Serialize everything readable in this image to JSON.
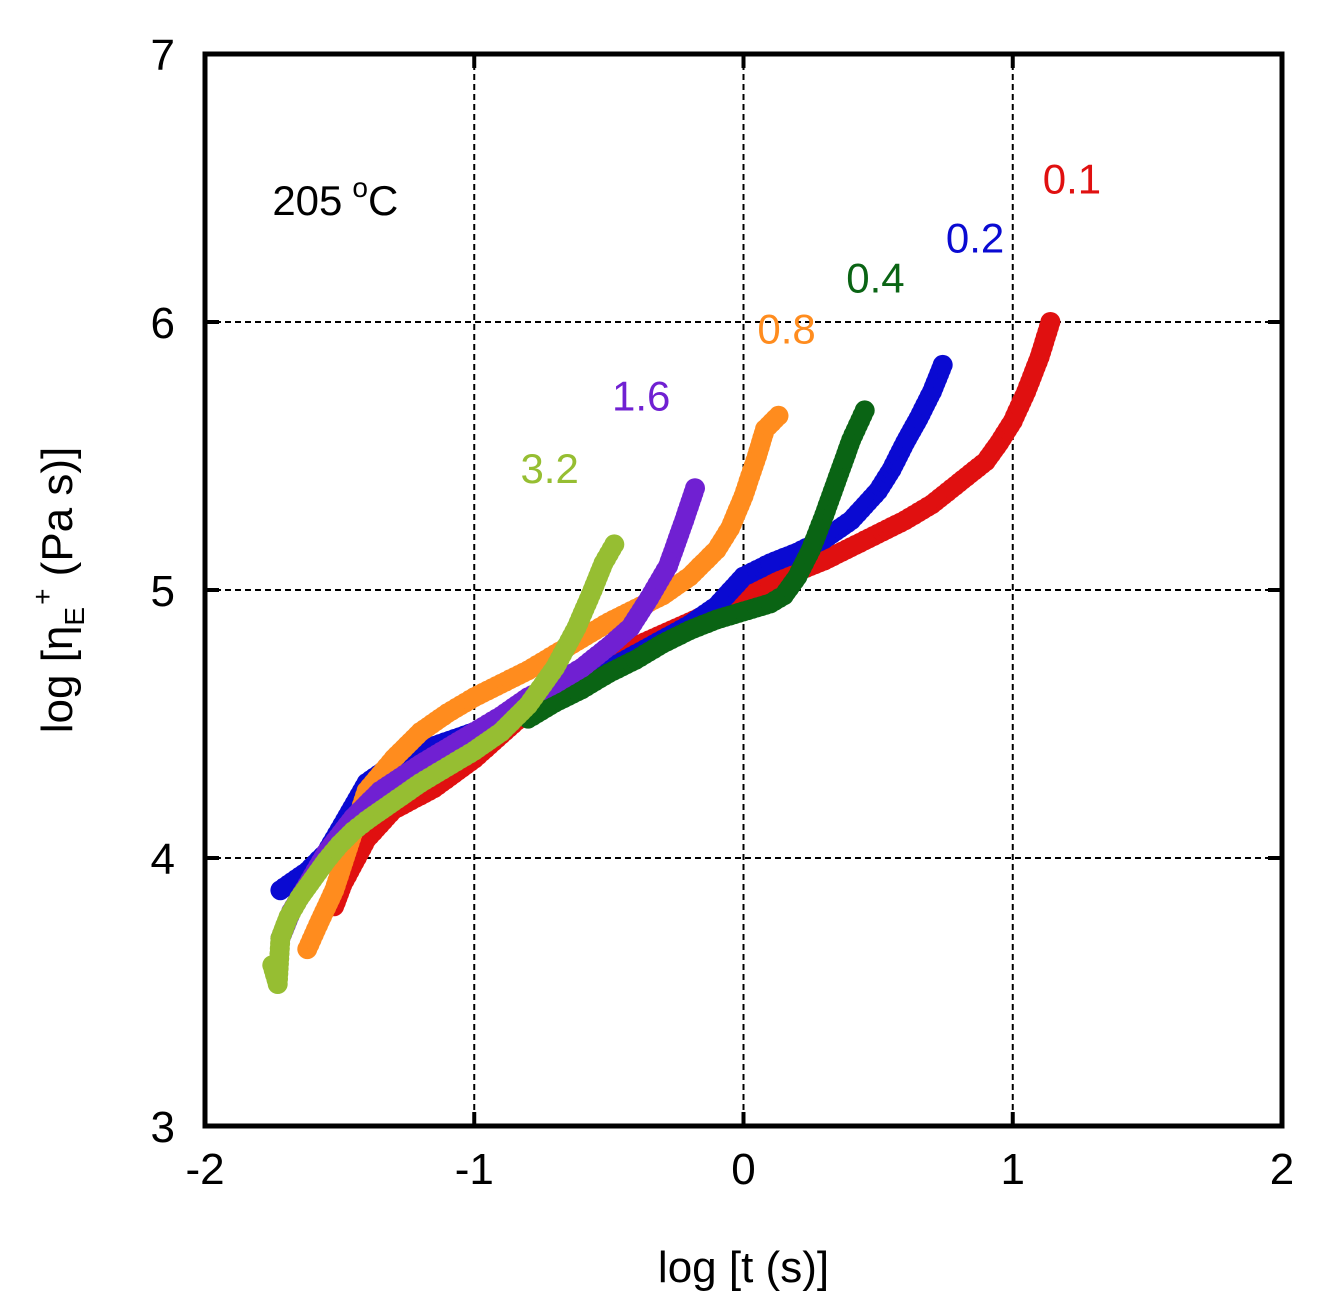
{
  "chart_data": {
    "type": "scatter",
    "title": "",
    "xlabel": "log [t (s)]",
    "ylabel": "log [η_E^+ (Pa s)]",
    "ylabel_parts": {
      "prefix": "log [η",
      "sub": "E",
      "sup": "+",
      "suffix": " (Pa s)]"
    },
    "xlim": [
      -2,
      2
    ],
    "ylim": [
      3,
      7
    ],
    "xticks": [
      -2,
      -1,
      0,
      1,
      2
    ],
    "yticks": [
      3,
      4,
      5,
      6,
      7
    ],
    "grid": true,
    "annotation": {
      "text": "205 °C",
      "value": "205",
      "unit": "C",
      "x": -1.75,
      "y": 6.4
    },
    "series": [
      {
        "name": "0.1",
        "color": "#e01010",
        "label_pos": {
          "x": 1.22,
          "y": 6.48
        },
        "x": [
          -1.52,
          -1.49,
          -1.4,
          -1.3,
          -1.15,
          -1.0,
          -0.8,
          -0.6,
          -0.4,
          -0.2,
          0.0,
          0.2,
          0.3,
          0.4,
          0.5,
          0.6,
          0.7,
          0.8,
          0.9,
          0.95,
          1.0,
          1.05,
          1.1,
          1.14
        ],
        "y": [
          3.82,
          3.9,
          4.07,
          4.18,
          4.26,
          4.37,
          4.55,
          4.68,
          4.79,
          4.88,
          4.97,
          5.07,
          5.11,
          5.16,
          5.21,
          5.26,
          5.32,
          5.4,
          5.48,
          5.55,
          5.63,
          5.74,
          5.87,
          6.0
        ]
      },
      {
        "name": "0.2",
        "color": "#0a0ad2",
        "label_pos": {
          "x": 0.86,
          "y": 6.26
        },
        "x": [
          -1.72,
          -1.62,
          -1.55,
          -1.48,
          -1.4,
          -1.3,
          -1.2,
          -1.0,
          -0.8,
          -0.6,
          -0.4,
          -0.2,
          -0.1,
          0.0,
          0.1,
          0.2,
          0.3,
          0.4,
          0.5,
          0.55,
          0.6,
          0.65,
          0.7,
          0.74
        ],
        "y": [
          3.88,
          3.95,
          4.02,
          4.14,
          4.28,
          4.35,
          4.4,
          4.47,
          4.56,
          4.65,
          4.76,
          4.87,
          4.94,
          5.05,
          5.1,
          5.14,
          5.19,
          5.26,
          5.37,
          5.45,
          5.55,
          5.64,
          5.74,
          5.84
        ]
      },
      {
        "name": "0.4",
        "color": "#0a6414",
        "label_pos": {
          "x": 0.49,
          "y": 6.11
        },
        "x": [
          -0.8,
          -0.7,
          -0.6,
          -0.5,
          -0.4,
          -0.3,
          -0.2,
          -0.1,
          0.0,
          0.1,
          0.15,
          0.2,
          0.25,
          0.3,
          0.35,
          0.4,
          0.45
        ],
        "y": [
          4.52,
          4.58,
          4.63,
          4.69,
          4.74,
          4.8,
          4.85,
          4.89,
          4.92,
          4.95,
          4.98,
          5.05,
          5.15,
          5.28,
          5.42,
          5.56,
          5.67
        ]
      },
      {
        "name": "0.8",
        "color": "#ff8c1e",
        "label_pos": {
          "x": 0.16,
          "y": 5.92
        },
        "x": [
          -1.62,
          -1.58,
          -1.52,
          -1.4,
          -1.3,
          -1.2,
          -1.1,
          -1.0,
          -0.9,
          -0.8,
          -0.7,
          -0.6,
          -0.5,
          -0.4,
          -0.3,
          -0.2,
          -0.1,
          -0.05,
          0.0,
          0.05,
          0.08,
          0.13
        ],
        "y": [
          3.66,
          3.75,
          3.88,
          4.25,
          4.37,
          4.47,
          4.54,
          4.6,
          4.65,
          4.7,
          4.76,
          4.82,
          4.88,
          4.93,
          4.98,
          5.05,
          5.15,
          5.23,
          5.35,
          5.5,
          5.6,
          5.65
        ]
      },
      {
        "name": "1.6",
        "color": "#7020d2",
        "label_pos": {
          "x": -0.38,
          "y": 5.67
        },
        "x": [
          -1.72,
          -1.68,
          -1.62,
          -1.55,
          -1.45,
          -1.35,
          -1.2,
          -1.0,
          -0.9,
          -0.8,
          -0.7,
          -0.6,
          -0.5,
          -0.42,
          -0.35,
          -0.28,
          -0.22,
          -0.18
        ],
        "y": [
          3.7,
          3.8,
          3.9,
          4.02,
          4.15,
          4.25,
          4.35,
          4.47,
          4.53,
          4.6,
          4.65,
          4.71,
          4.79,
          4.86,
          4.97,
          5.09,
          5.26,
          5.38
        ]
      },
      {
        "name": "3.2",
        "color": "#96be32",
        "label_pos": {
          "x": -0.72,
          "y": 5.4
        },
        "x": [
          -1.75,
          -1.73,
          -1.72,
          -1.69,
          -1.65,
          -1.6,
          -1.55,
          -1.5,
          -1.45,
          -1.4,
          -1.3,
          -1.2,
          -1.1,
          -1.0,
          -0.9,
          -0.8,
          -0.7,
          -0.62,
          -0.56,
          -0.52,
          -0.48
        ],
        "y": [
          3.6,
          3.53,
          3.7,
          3.78,
          3.85,
          3.92,
          3.99,
          4.05,
          4.1,
          4.14,
          4.21,
          4.28,
          4.34,
          4.4,
          4.47,
          4.57,
          4.71,
          4.86,
          5.0,
          5.1,
          5.17
        ]
      }
    ]
  }
}
